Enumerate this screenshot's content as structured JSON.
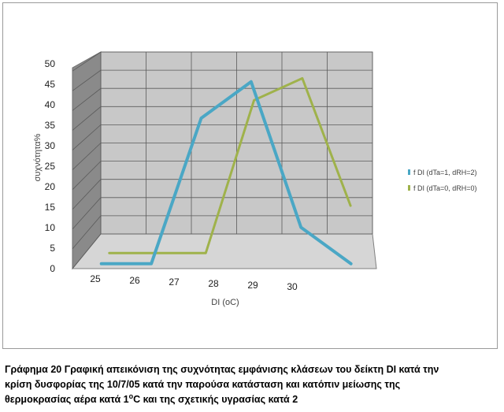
{
  "chart_data": {
    "type": "line",
    "rendering": "3d",
    "title": "",
    "xlabel": "DI (oC)",
    "ylabel": "συχνότητα%",
    "categories": [
      "25",
      "26",
      "27",
      "28",
      "29",
      "30"
    ],
    "ylim": [
      0,
      50
    ],
    "yticks": [
      "0",
      "5",
      "10",
      "15",
      "20",
      "25",
      "30",
      "35",
      "40",
      "45",
      "50"
    ],
    "grid": true,
    "legend_position": "right",
    "series": [
      {
        "name": "f DI (dTa=1, dRH=2)",
        "color": "#4aa7c5",
        "values": [
          0,
          0,
          40,
          50,
          10,
          0
        ]
      },
      {
        "name": "f DI (dTa=0, dRH=0)",
        "color": "#9fb24b",
        "values": [
          0,
          0,
          0,
          42,
          48,
          13
        ]
      }
    ]
  },
  "caption": {
    "line1": "Γράφημα 20 Γραφική απεικόνιση της συχνότητας εμφάνισης κλάσεων του δείκτη DI κατά την",
    "line2": "κρίση δυσφορίας της 10/7/05 κατά την παρούσα κατάσταση και κατόπιν μείωσης της",
    "line3_pre": "θερμοκρασίας αέρα κατά 1",
    "line3_sup": "o",
    "line3_post": "C και της σχετικής υγρασίας κατά 2"
  }
}
